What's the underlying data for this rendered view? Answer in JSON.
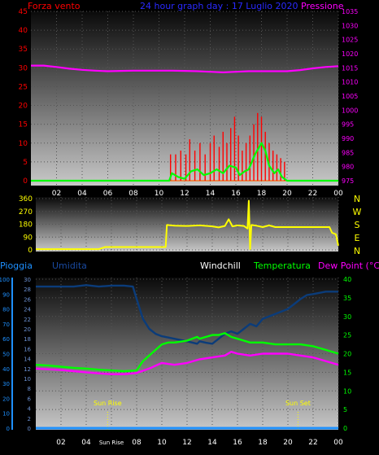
{
  "colors": {
    "bg": "#000000",
    "plot_top": "#0a0a0a",
    "plot_bottom": "#c8c8c8",
    "grid": "#555555",
    "wind": "#ff0000",
    "wind_avg": "#00ff00",
    "pressure": "#ff00ff",
    "direction": "#ffff00",
    "rain": "#1e90ff",
    "humidity": "#0b3c7a",
    "temperature": "#00ff00",
    "dewpoint": "#ff00ff",
    "sun": "#ffff00",
    "hour_label": "#ffffff"
  },
  "chart_data": [
    {
      "type": "line",
      "title": "24 hour graph day : 17 Luglio 2020",
      "left_axis_label": "Forza vento",
      "right_axis_label": "Pressione",
      "x_hours": [
        "02",
        "04",
        "06",
        "08",
        "10",
        "12",
        "14",
        "16",
        "18",
        "20",
        "22",
        "00"
      ],
      "xlim": [
        0,
        24
      ],
      "left_ticks": [
        "0",
        "5",
        "10",
        "15",
        "20",
        "25",
        "30",
        "35",
        "40",
        "45"
      ],
      "ylim_left": [
        0,
        45
      ],
      "right_ticks": [
        "975",
        "980",
        "985",
        "990",
        "995",
        "1000",
        "1005",
        "1010",
        "1015",
        "1020",
        "1025",
        "1030",
        "1035"
      ],
      "ylim_right": [
        975,
        1035
      ],
      "grid": true,
      "series": [
        {
          "key": "pressure",
          "axis": "right",
          "points": [
            [
              0,
              1015.8
            ],
            [
              1,
              1015.8
            ],
            [
              2,
              1015.3
            ],
            [
              3,
              1014.7
            ],
            [
              4,
              1014.3
            ],
            [
              5,
              1014.0
            ],
            [
              6,
              1013.8
            ],
            [
              7,
              1013.9
            ],
            [
              8,
              1014.0
            ],
            [
              9,
              1014.0
            ],
            [
              10,
              1014.0
            ],
            [
              11,
              1014.0
            ],
            [
              12,
              1013.9
            ],
            [
              13,
              1013.8
            ],
            [
              14,
              1013.6
            ],
            [
              15,
              1013.4
            ],
            [
              16,
              1013.6
            ],
            [
              17,
              1013.8
            ],
            [
              18,
              1013.8
            ],
            [
              19,
              1013.8
            ],
            [
              20,
              1013.8
            ],
            [
              21,
              1014.2
            ],
            [
              22,
              1014.8
            ],
            [
              23,
              1015.3
            ],
            [
              24,
              1015.6
            ]
          ]
        },
        {
          "key": "wind_avg",
          "axis": "left",
          "points": [
            [
              0,
              0
            ],
            [
              10.8,
              0
            ],
            [
              11.0,
              2
            ],
            [
              11.5,
              1
            ],
            [
              12.0,
              0.5
            ],
            [
              12.5,
              2.5
            ],
            [
              13.0,
              3
            ],
            [
              13.5,
              1.5
            ],
            [
              14.0,
              2
            ],
            [
              14.5,
              3
            ],
            [
              15.0,
              2
            ],
            [
              15.5,
              4
            ],
            [
              16.0,
              3.5
            ],
            [
              16.3,
              1.5
            ],
            [
              16.7,
              2.5
            ],
            [
              17.0,
              3
            ],
            [
              17.5,
              7
            ],
            [
              18.0,
              10
            ],
            [
              18.3,
              8
            ],
            [
              18.6,
              4
            ],
            [
              19.0,
              2
            ],
            [
              19.3,
              3
            ],
            [
              19.6,
              1
            ],
            [
              20.0,
              0
            ],
            [
              24,
              0
            ]
          ]
        }
      ],
      "wind_gust_bars": [
        [
          10.9,
          7
        ],
        [
          11.3,
          7
        ],
        [
          11.7,
          8
        ],
        [
          12.1,
          7
        ],
        [
          12.4,
          11
        ],
        [
          12.8,
          8
        ],
        [
          13.2,
          10
        ],
        [
          13.6,
          7
        ],
        [
          14.0,
          10
        ],
        [
          14.3,
          12
        ],
        [
          14.7,
          9
        ],
        [
          15.0,
          13
        ],
        [
          15.3,
          10
        ],
        [
          15.6,
          14
        ],
        [
          15.9,
          17
        ],
        [
          16.2,
          12
        ],
        [
          16.5,
          8
        ],
        [
          16.8,
          10
        ],
        [
          17.1,
          12
        ],
        [
          17.4,
          15
        ],
        [
          17.7,
          18
        ],
        [
          18.0,
          17
        ],
        [
          18.3,
          13
        ],
        [
          18.6,
          10
        ],
        [
          18.9,
          8
        ],
        [
          19.2,
          7
        ],
        [
          19.5,
          6
        ],
        [
          19.8,
          5
        ]
      ]
    },
    {
      "type": "line",
      "x_hours": [
        "02",
        "04",
        "06",
        "08",
        "10",
        "12",
        "14",
        "16",
        "18",
        "20",
        "22",
        "00"
      ],
      "xlim": [
        0,
        24
      ],
      "left_ticks": [
        "0",
        "90",
        "180",
        "270",
        "360"
      ],
      "ylim": [
        0,
        360
      ],
      "direction_labels": [
        "N",
        "W",
        "S",
        "E",
        "N"
      ],
      "grid": true,
      "series": [
        {
          "key": "direction",
          "points": [
            [
              0,
              5
            ],
            [
              2.5,
              5
            ],
            [
              5.0,
              5
            ],
            [
              5.5,
              20
            ],
            [
              10.3,
              20
            ],
            [
              10.4,
              175
            ],
            [
              11,
              170
            ],
            [
              12,
              168
            ],
            [
              13,
              172
            ],
            [
              14,
              165
            ],
            [
              14.5,
              158
            ],
            [
              15,
              168
            ],
            [
              15.3,
              215
            ],
            [
              15.6,
              165
            ],
            [
              16,
              172
            ],
            [
              16.5,
              168
            ],
            [
              16.8,
              150
            ],
            [
              16.9,
              345
            ],
            [
              17.0,
              5
            ],
            [
              17.1,
              175
            ],
            [
              17.5,
              170
            ],
            [
              18,
              160
            ],
            [
              18.5,
              172
            ],
            [
              19,
              160
            ],
            [
              19.5,
              160
            ],
            [
              20,
              160
            ],
            [
              22,
              160
            ],
            [
              23.3,
              160
            ],
            [
              23.5,
              120
            ],
            [
              23.8,
              110
            ],
            [
              24,
              30
            ]
          ]
        }
      ]
    },
    {
      "type": "line",
      "label_rain": "Pioggia",
      "label_humidity": "Umidita",
      "label_windchill": "Windchill",
      "label_temperature": "Temperatura",
      "label_dewpoint": "Dew Point (°C)",
      "x_labels": [
        "02",
        "04",
        "Sun Rise",
        "08",
        "10",
        "12",
        "14",
        "16",
        "18",
        "20",
        "22",
        "00"
      ],
      "xlim": [
        0,
        24
      ],
      "ticks_rain": [
        "0",
        "10",
        "20",
        "30",
        "40",
        "50",
        "60",
        "70",
        "80",
        "90",
        "100"
      ],
      "ylim_rain": [
        0,
        100
      ],
      "ticks_humidity": [
        "0",
        "2",
        "4",
        "6",
        "8",
        "10",
        "12",
        "14",
        "16",
        "18",
        "20",
        "22",
        "24",
        "26",
        "28",
        "30"
      ],
      "ylim_humidity": [
        0,
        30
      ],
      "ticks_temp": [
        "0",
        "5",
        "10",
        "15",
        "20",
        "25",
        "30",
        "35",
        "40"
      ],
      "ylim_temp": [
        0,
        40
      ],
      "sun_rise": {
        "label": "Sun Rise",
        "hour": 5.7
      },
      "sun_set": {
        "label": "Sun Set",
        "hour": 20.8
      },
      "grid": true,
      "series": [
        {
          "key": "humidity",
          "axis": "humidity",
          "points": [
            [
              0,
              28.5
            ],
            [
              2,
              28.5
            ],
            [
              3,
              28.5
            ],
            [
              4,
              28.8
            ],
            [
              5,
              28.5
            ],
            [
              6,
              28.7
            ],
            [
              7,
              28.7
            ],
            [
              7.7,
              28.5
            ],
            [
              8,
              26
            ],
            [
              8.5,
              22
            ],
            [
              9,
              20
            ],
            [
              9.5,
              19
            ],
            [
              10,
              18.5
            ],
            [
              11,
              18
            ],
            [
              12,
              17.5
            ],
            [
              12.8,
              17
            ],
            [
              13,
              17.5
            ],
            [
              13.5,
              17.2
            ],
            [
              14,
              17
            ],
            [
              14.5,
              18
            ],
            [
              15,
              19
            ],
            [
              15.5,
              19.5
            ],
            [
              16,
              19
            ],
            [
              16.5,
              20
            ],
            [
              17,
              21
            ],
            [
              17.5,
              20.5
            ],
            [
              18,
              22
            ],
            [
              18.5,
              22.5
            ],
            [
              19,
              23
            ],
            [
              19.5,
              23.5
            ],
            [
              20,
              24
            ],
            [
              20.5,
              25
            ],
            [
              21,
              26
            ],
            [
              21.5,
              26.8
            ],
            [
              22,
              27
            ],
            [
              23,
              27.5
            ],
            [
              24,
              27.5
            ]
          ]
        },
        {
          "key": "temperature",
          "axis": "temp",
          "points": [
            [
              0,
              17
            ],
            [
              1,
              16.8
            ],
            [
              2,
              16.5
            ],
            [
              3,
              16.2
            ],
            [
              4,
              16
            ],
            [
              5,
              15.7
            ],
            [
              6,
              15.5
            ],
            [
              7,
              15.3
            ],
            [
              8,
              15.5
            ],
            [
              8.5,
              18
            ],
            [
              9,
              19.5
            ],
            [
              9.5,
              21
            ],
            [
              10,
              22.5
            ],
            [
              10.5,
              23
            ],
            [
              11,
              23
            ],
            [
              12,
              23.5
            ],
            [
              12.8,
              24.5
            ],
            [
              13,
              24
            ],
            [
              13.5,
              24.5
            ],
            [
              14,
              25
            ],
            [
              14.5,
              25
            ],
            [
              15,
              25.5
            ],
            [
              15.5,
              24.5
            ],
            [
              16,
              24
            ],
            [
              16.5,
              23.5
            ],
            [
              17,
              23
            ],
            [
              18,
              23
            ],
            [
              19,
              22.5
            ],
            [
              20,
              22.5
            ],
            [
              21,
              22.5
            ],
            [
              22,
              22
            ],
            [
              23,
              21
            ],
            [
              24,
              20
            ]
          ]
        },
        {
          "key": "dewpoint",
          "axis": "temp",
          "points": [
            [
              0,
              16
            ],
            [
              1,
              15.8
            ],
            [
              2,
              15.6
            ],
            [
              3,
              15.3
            ],
            [
              4,
              15
            ],
            [
              5,
              14.7
            ],
            [
              6,
              14.5
            ],
            [
              7,
              14.5
            ],
            [
              8,
              14.8
            ],
            [
              9,
              16
            ],
            [
              10,
              17.5
            ],
            [
              11,
              17
            ],
            [
              12,
              17.5
            ],
            [
              13,
              18.5
            ],
            [
              14,
              19
            ],
            [
              15,
              19.5
            ],
            [
              15.5,
              20.5
            ],
            [
              16,
              20
            ],
            [
              17,
              19.5
            ],
            [
              18,
              20
            ],
            [
              19,
              20
            ],
            [
              20,
              20
            ],
            [
              21,
              19.5
            ],
            [
              22,
              19
            ],
            [
              23,
              18
            ],
            [
              24,
              17
            ]
          ]
        },
        {
          "key": "rain",
          "axis": "rain",
          "points": [
            [
              0,
              0
            ],
            [
              24,
              0
            ]
          ]
        }
      ]
    }
  ]
}
